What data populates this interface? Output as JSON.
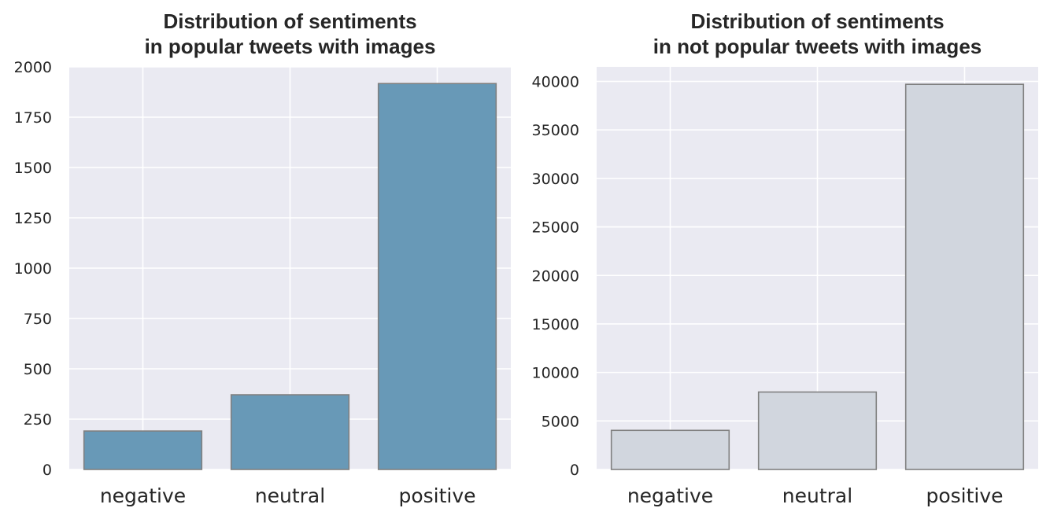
{
  "chart_data": [
    {
      "type": "bar",
      "title": "Distribution of sentiments\nin popular tweets with images",
      "title_lines": [
        "Distribution of sentiments",
        "in popular tweets with images"
      ],
      "categories": [
        "negative",
        "neutral",
        "positive"
      ],
      "values": [
        191,
        371,
        1917
      ],
      "ylim": [
        0,
        2000
      ],
      "yticks": [
        0,
        250,
        500,
        750,
        1000,
        1250,
        1500,
        1750,
        2000
      ],
      "xlabel": "",
      "ylabel": "",
      "grid": true,
      "bar_color": "#6899b7",
      "edge_color": "#808080",
      "background_color": "#eaeaf2"
    },
    {
      "type": "bar",
      "title": "Distribution of sentiments\nin not popular tweets with images",
      "title_lines": [
        "Distribution of sentiments",
        "in not popular tweets with images"
      ],
      "categories": [
        "negative",
        "neutral",
        "positive"
      ],
      "values": [
        4030,
        7980,
        39700
      ],
      "ylim": [
        0,
        41500
      ],
      "yticks": [
        0,
        5000,
        10000,
        15000,
        20000,
        25000,
        30000,
        35000,
        40000
      ],
      "xlabel": "",
      "ylabel": "",
      "grid": true,
      "bar_color": "#d1d6de",
      "edge_color": "#808080",
      "background_color": "#eaeaf2"
    }
  ]
}
